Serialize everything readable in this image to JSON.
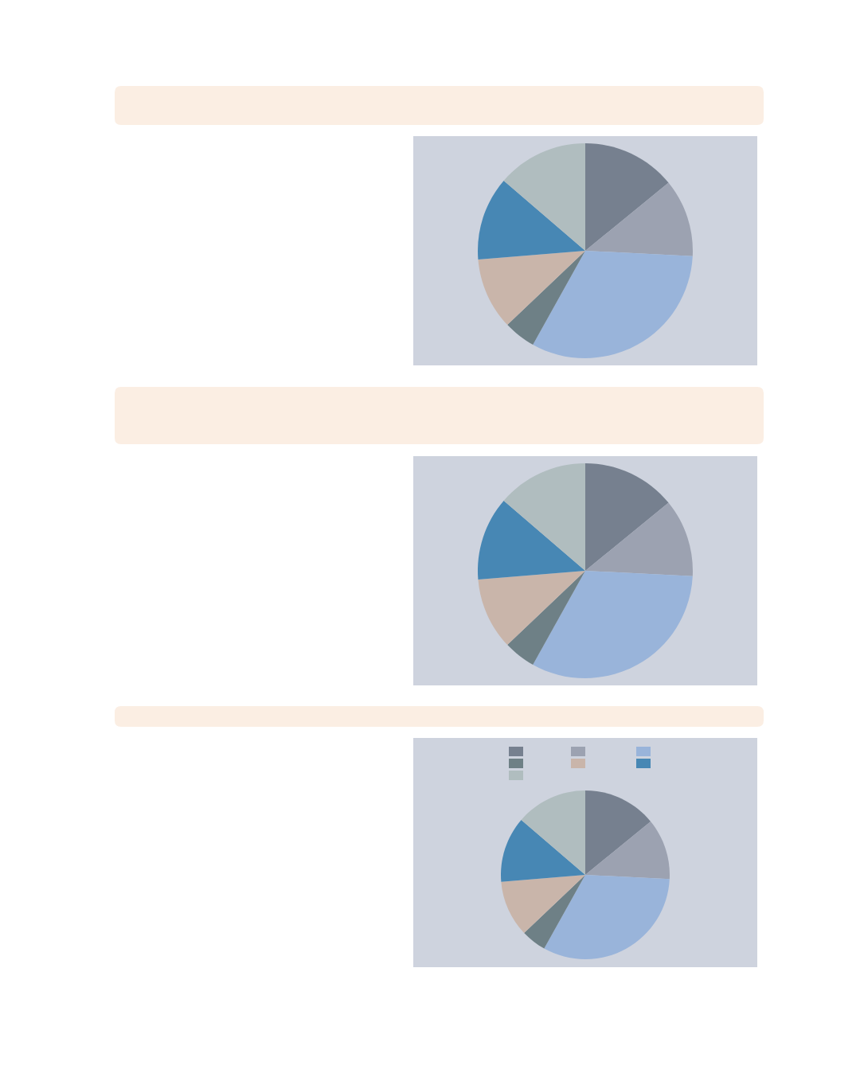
{
  "chart_data": [
    {
      "type": "pie",
      "categories": [
        null,
        null,
        null,
        null,
        null,
        null,
        null
      ],
      "values": [
        14.1,
        11.7,
        32.3,
        4.8,
        10.8,
        12.6,
        13.7
      ],
      "colors": [
        "#76808f",
        "#9ca2b1",
        "#99b4da",
        "#6e8086",
        "#c9b5aa",
        "#4787b4",
        "#b0bdbf"
      ]
    },
    {
      "type": "pie",
      "categories": [
        null,
        null,
        null,
        null,
        null,
        null,
        null
      ],
      "values": [
        14.1,
        11.7,
        32.3,
        4.8,
        10.8,
        12.6,
        13.7
      ],
      "colors": [
        "#76808f",
        "#9ca2b1",
        "#99b4da",
        "#6e8086",
        "#c9b5aa",
        "#4787b4",
        "#b0bdbf"
      ]
    },
    {
      "type": "pie",
      "categories": [
        null,
        null,
        null,
        null,
        null,
        null,
        null
      ],
      "values": [
        14.1,
        11.7,
        32.3,
        4.8,
        10.8,
        12.6,
        13.7
      ],
      "colors": [
        "#76808f",
        "#9ca2b1",
        "#99b4da",
        "#6e8086",
        "#c9b5aa",
        "#4787b4",
        "#b0bdbf"
      ]
    }
  ]
}
